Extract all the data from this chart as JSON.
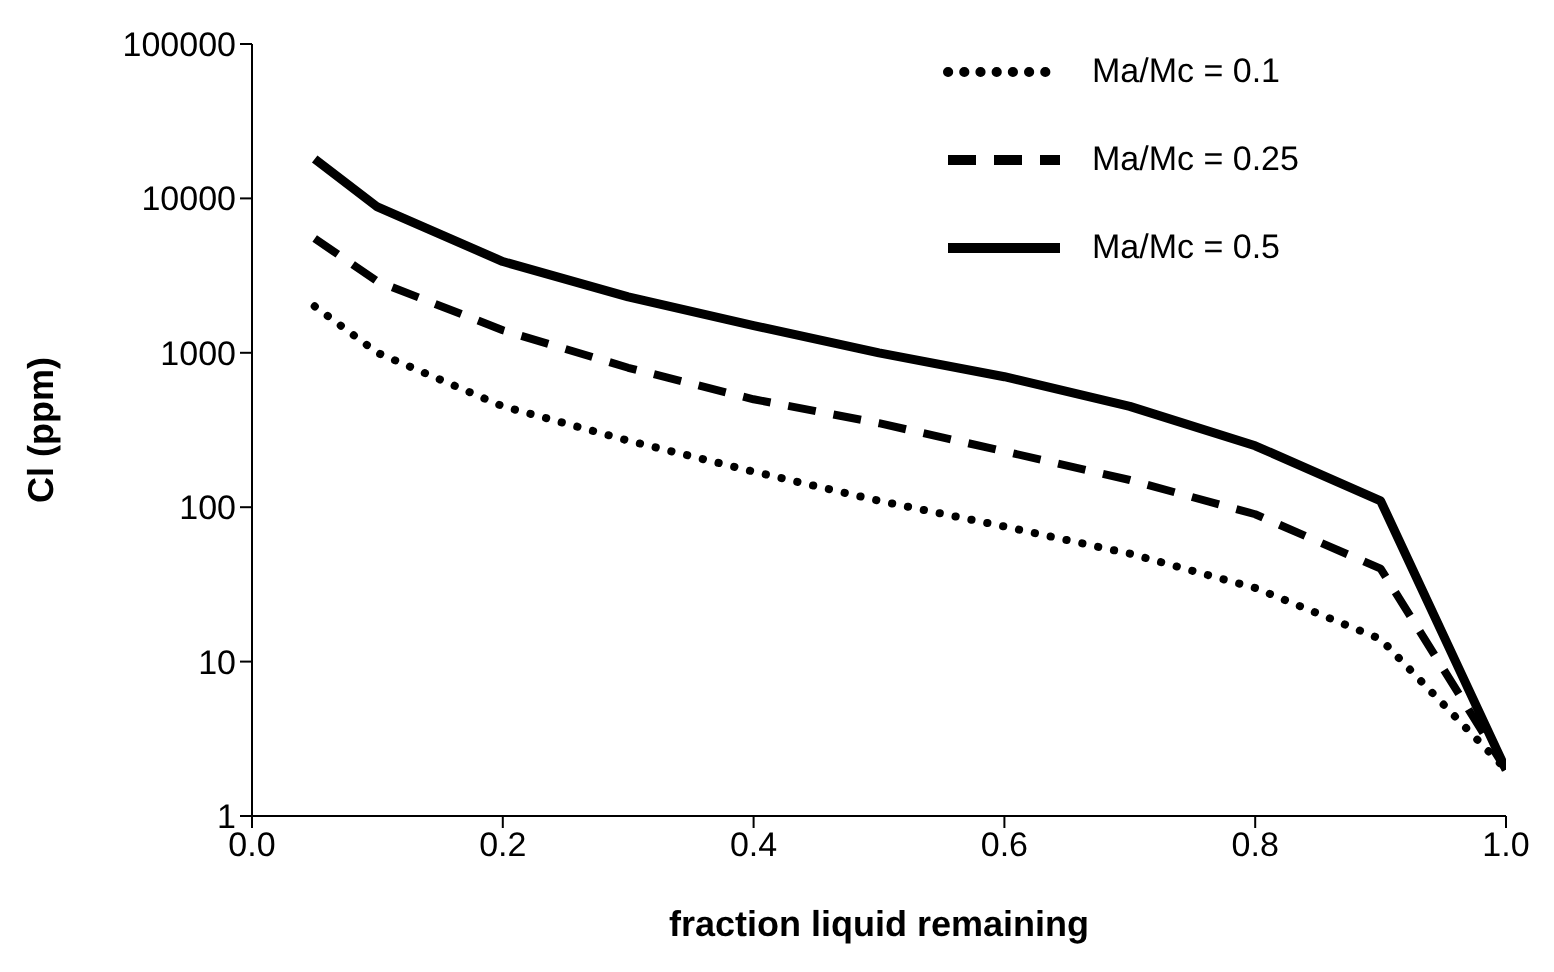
{
  "chart_data": {
    "type": "line",
    "xlabel": "fraction liquid remaining",
    "ylabel": "Cl (ppm)",
    "log": "y",
    "x": [
      0.05,
      0.1,
      0.2,
      0.3,
      0.4,
      0.5,
      0.6,
      0.7,
      0.8,
      0.9,
      1.0
    ],
    "series": [
      {
        "name": "Ma/Mc = 0.1",
        "color": "#000000",
        "line_style": "dotted",
        "values": [
          2000,
          1000,
          450,
          270,
          170,
          110,
          75,
          50,
          30,
          14,
          2
        ]
      },
      {
        "name": "Ma/Mc = 0.25",
        "color": "#000000",
        "line_style": "dashed",
        "values": [
          5500,
          2900,
          1400,
          800,
          500,
          350,
          230,
          150,
          90,
          40,
          2
        ]
      },
      {
        "name": "Ma/Mc = 0.5",
        "color": "#000000",
        "line_style": "solid",
        "values": [
          18000,
          8800,
          3900,
          2300,
          1500,
          1000,
          700,
          450,
          250,
          110,
          2
        ]
      }
    ],
    "xlim": [
      0,
      1
    ],
    "xticks": [
      {
        "value": 0,
        "label": "0.0"
      },
      {
        "value": 0.2,
        "label": "0.2"
      },
      {
        "value": 0.4,
        "label": "0.4"
      },
      {
        "value": 0.6,
        "label": "0.6"
      },
      {
        "value": 0.8,
        "label": "0.8"
      },
      {
        "value": 1,
        "label": "1.0"
      }
    ],
    "ylim": [
      1,
      100000
    ],
    "yticks": [
      1,
      10,
      100,
      1000,
      10000,
      100000
    ],
    "grid": false,
    "legend": "top right",
    "marker": "none"
  }
}
